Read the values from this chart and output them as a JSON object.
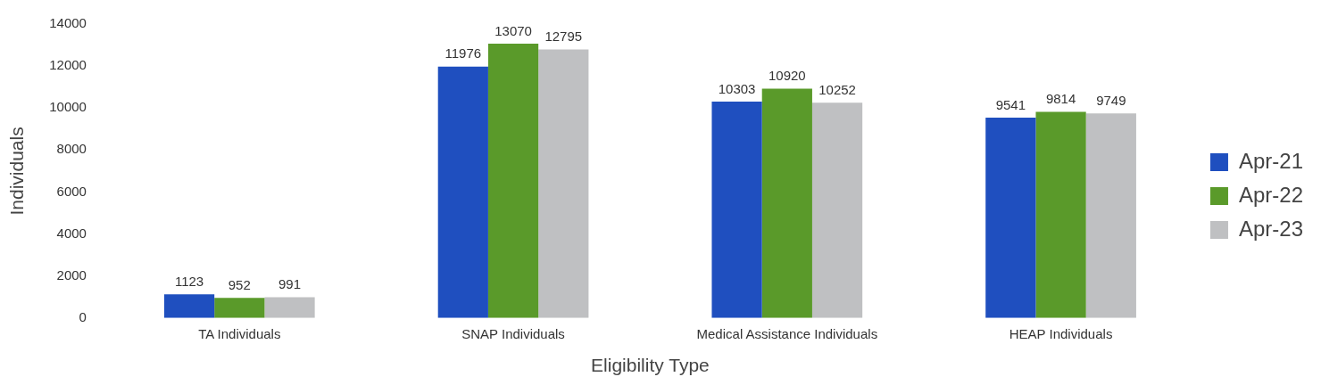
{
  "chart_data": {
    "type": "bar",
    "xlabel": "Eligibility Type",
    "ylabel": "Individuals",
    "categories": [
      "TA Individuals",
      "SNAP Individuals",
      "Medical Assistance Individuals",
      "HEAP Individuals"
    ],
    "series": [
      {
        "name": "Apr-21",
        "color": "#1f4fbf",
        "values": [
          1123,
          11976,
          10303,
          9541
        ]
      },
      {
        "name": "Apr-22",
        "color": "#5a9a2a",
        "values": [
          952,
          13070,
          10920,
          9814
        ]
      },
      {
        "name": "Apr-23",
        "color": "#bfc0c2",
        "values": [
          991,
          12795,
          10252,
          9749
        ]
      }
    ],
    "ylim": [
      0,
      14000
    ],
    "yticks": [
      0,
      2000,
      4000,
      6000,
      8000,
      10000,
      12000,
      14000
    ],
    "data_labels": true,
    "legend": "right"
  }
}
